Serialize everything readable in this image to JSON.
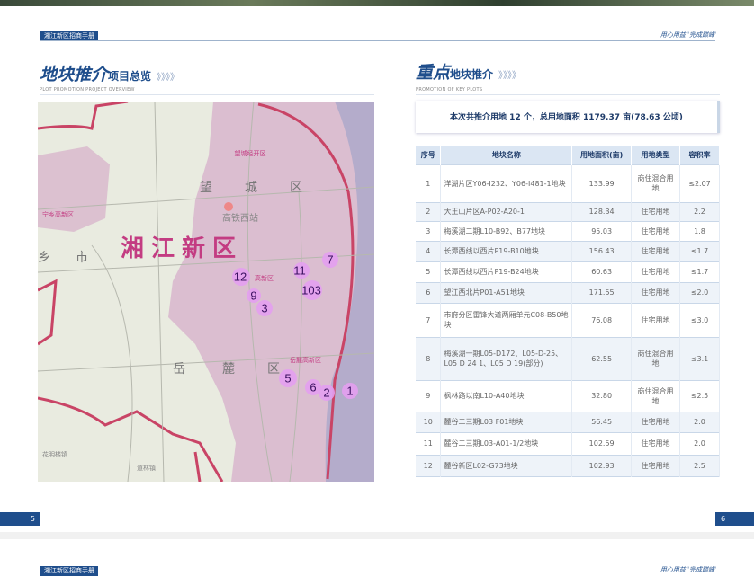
{
  "header": {
    "brand": "湘江新区招商手册",
    "slogan": "用心用益 '完成巅峰'"
  },
  "left": {
    "title_script": "地块推介",
    "title_rest": "项目总览",
    "chevrons": "》》》》",
    "subtitle": "PLOT PROMOTION PROJECT OVERVIEW",
    "map": {
      "district_big": "湘江新区",
      "labels": [
        "望城经开区",
        "望",
        "城",
        "区",
        "高铁西站",
        "宁乡高新区",
        "乡",
        "市",
        "岳",
        "麓",
        "区",
        "岳麓高新区",
        "高新区",
        "道林镇",
        "花明楼镇"
      ],
      "pins": [
        "12",
        "11",
        "7",
        "103",
        "9",
        "3",
        "5",
        "6",
        "2",
        "1"
      ],
      "colors": {
        "new_area": "#d8b6cc",
        "base": "#e9ebe0",
        "boundary": "#c94466",
        "river": "#9aa0c8",
        "pin": "#e39ef0"
      }
    }
  },
  "right": {
    "title_script": "重点",
    "title_rest": "地块推介",
    "chevrons": "》》》》",
    "subtitle": "PROMOTION OF KEY PLOTS",
    "summary": "本次共推介用地 12 个，总用地面积 1179.37 亩(78.63 公顷)",
    "table": {
      "headers": [
        "序号",
        "地块名称",
        "用地面积(亩)",
        "用地类型",
        "容积率"
      ],
      "rows": [
        [
          "1",
          "洋湖片区Y06-I232、Y06-I481-1地块",
          "133.99",
          "商住混合用地",
          "≤2.07"
        ],
        [
          "2",
          "大王山片区A-P02-A20-1",
          "128.34",
          "住宅用地",
          "2.2"
        ],
        [
          "3",
          "梅溪湖二期L10-B92、B77地块",
          "95.03",
          "住宅用地",
          "1.8"
        ],
        [
          "4",
          "长潭西线以西片P19-B10地块",
          "156.43",
          "住宅用地",
          "≤1.7"
        ],
        [
          "5",
          "长潭西线以西片P19-B24地块",
          "60.63",
          "住宅用地",
          "≤1.7"
        ],
        [
          "6",
          "望江西北片P01-A51地块",
          "171.55",
          "住宅用地",
          "≤2.0"
        ],
        [
          "7",
          "市府分区雷锋大道两厢单元C08-B50地块",
          "76.08",
          "住宅用地",
          "≤3.0"
        ],
        [
          "8",
          "梅溪湖一期L05-D172、L05-D-25、L05 D 24 1、L05 D 19(部分)",
          "62.55",
          "商住混合用地",
          "≤3.1"
        ],
        [
          "9",
          "枫林路以南L10-A40地块",
          "32.80",
          "商住混合用地",
          "≤2.5"
        ],
        [
          "10",
          "麓谷二三期L03 F01地块",
          "56.45",
          "住宅用地",
          "2.0"
        ],
        [
          "11",
          "麓谷二三期L03-A01-1/2地块",
          "102.59",
          "住宅用地",
          "2.0"
        ],
        [
          "12",
          "麓谷新区L02-G73地块",
          "102.93",
          "住宅用地",
          "2.5"
        ]
      ]
    }
  },
  "footer": {
    "page_left": "5",
    "page_right": "6",
    "next_brand": "湘江新区招商手册",
    "next_slogan": "用心用益 '完成巅峰'"
  },
  "colors": {
    "brand_blue": "#1f4e8c",
    "table_header": "#dbe6f3"
  }
}
